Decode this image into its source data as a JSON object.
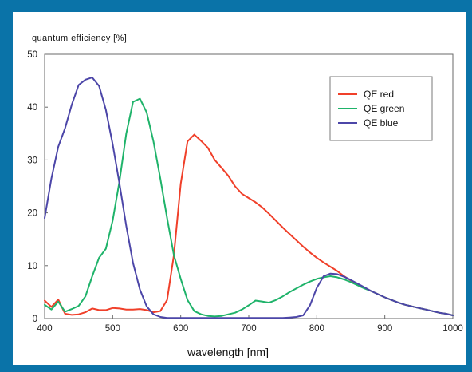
{
  "colors": {
    "background": "#0a73a8",
    "panel": "#ffffff"
  },
  "chart_data": {
    "type": "line",
    "title": "",
    "ylabel": "quantum efficiency [%]",
    "xlabel": "wavelength [nm]",
    "xlim": [
      400,
      1000
    ],
    "ylim": [
      0,
      50
    ],
    "xticks": [
      400,
      500,
      600,
      700,
      800,
      900,
      1000
    ],
    "yticks": [
      0,
      10,
      20,
      30,
      40,
      50
    ],
    "grid": false,
    "legend_position": "top-right",
    "series": [
      {
        "name": "QE red",
        "color": "#f0402a",
        "x": [
          400,
          410,
          420,
          430,
          440,
          450,
          460,
          470,
          480,
          490,
          500,
          510,
          520,
          530,
          540,
          550,
          560,
          570,
          580,
          590,
          600,
          610,
          620,
          630,
          640,
          650,
          660,
          670,
          680,
          690,
          700,
          710,
          720,
          730,
          740,
          750,
          760,
          770,
          780,
          790,
          800,
          810,
          820,
          830,
          840,
          850,
          860,
          870,
          880,
          890,
          900,
          910,
          920,
          930,
          940,
          950,
          960,
          970,
          980,
          990,
          1000
        ],
        "values": [
          3.4,
          2.2,
          3.6,
          0.9,
          0.7,
          0.8,
          1.2,
          1.9,
          1.6,
          1.6,
          2.0,
          1.9,
          1.7,
          1.7,
          1.8,
          1.6,
          1.2,
          1.4,
          3.5,
          12.0,
          25.5,
          33.5,
          34.8,
          33.6,
          32.3,
          30.0,
          28.5,
          27.0,
          25.0,
          23.6,
          22.8,
          22.0,
          21.0,
          19.8,
          18.5,
          17.2,
          16.0,
          14.8,
          13.6,
          12.5,
          11.5,
          10.6,
          9.8,
          9.0,
          8.0,
          7.2,
          6.5,
          5.8,
          5.2,
          4.6,
          4.0,
          3.5,
          3.0,
          2.6,
          2.3,
          2.0,
          1.7,
          1.4,
          1.1,
          0.9,
          0.6
        ]
      },
      {
        "name": "QE green",
        "color": "#1fb36a",
        "x": [
          400,
          410,
          420,
          430,
          440,
          450,
          460,
          470,
          480,
          490,
          500,
          510,
          520,
          530,
          540,
          550,
          560,
          570,
          580,
          590,
          600,
          610,
          620,
          630,
          640,
          650,
          660,
          670,
          680,
          690,
          700,
          710,
          720,
          730,
          740,
          750,
          760,
          770,
          780,
          790,
          800,
          810,
          820,
          830,
          840,
          850,
          860,
          870,
          880,
          890,
          900,
          910,
          920,
          930,
          940,
          950,
          960,
          970,
          980,
          990,
          1000
        ],
        "values": [
          2.6,
          1.7,
          3.2,
          1.3,
          1.8,
          2.4,
          4.2,
          8.0,
          11.5,
          13.2,
          18.5,
          26.0,
          35.0,
          41.0,
          41.6,
          39.0,
          33.5,
          26.5,
          19.0,
          12.0,
          7.5,
          3.5,
          1.4,
          0.8,
          0.5,
          0.4,
          0.5,
          0.8,
          1.1,
          1.7,
          2.5,
          3.4,
          3.2,
          3.0,
          3.5,
          4.2,
          5.0,
          5.7,
          6.4,
          7.0,
          7.5,
          7.8,
          8.0,
          7.8,
          7.4,
          6.9,
          6.3,
          5.7,
          5.2,
          4.6,
          4.0,
          3.5,
          3.0,
          2.6,
          2.3,
          2.0,
          1.7,
          1.4,
          1.1,
          0.9,
          0.6
        ]
      },
      {
        "name": "QE blue",
        "color": "#4c46a8",
        "x": [
          400,
          410,
          420,
          430,
          440,
          450,
          460,
          470,
          480,
          490,
          500,
          510,
          520,
          530,
          540,
          550,
          560,
          570,
          580,
          590,
          600,
          610,
          620,
          630,
          640,
          650,
          660,
          670,
          680,
          690,
          700,
          710,
          720,
          730,
          740,
          750,
          760,
          770,
          780,
          790,
          800,
          810,
          820,
          830,
          840,
          850,
          860,
          870,
          880,
          890,
          900,
          910,
          920,
          930,
          940,
          950,
          960,
          970,
          980,
          990,
          1000
        ],
        "values": [
          19.0,
          26.5,
          32.5,
          36.0,
          40.5,
          44.2,
          45.2,
          45.6,
          44.0,
          39.5,
          33.0,
          25.5,
          17.5,
          10.5,
          5.5,
          2.3,
          0.8,
          0.3,
          0.1,
          0.1,
          0.1,
          0.1,
          0.1,
          0.1,
          0.1,
          0.1,
          0.1,
          0.1,
          0.1,
          0.1,
          0.1,
          0.1,
          0.1,
          0.1,
          0.1,
          0.1,
          0.2,
          0.3,
          0.6,
          2.5,
          5.8,
          8.0,
          8.5,
          8.4,
          7.9,
          7.3,
          6.6,
          5.9,
          5.2,
          4.6,
          4.0,
          3.5,
          3.0,
          2.6,
          2.3,
          2.0,
          1.7,
          1.4,
          1.1,
          0.9,
          0.6
        ]
      }
    ]
  }
}
